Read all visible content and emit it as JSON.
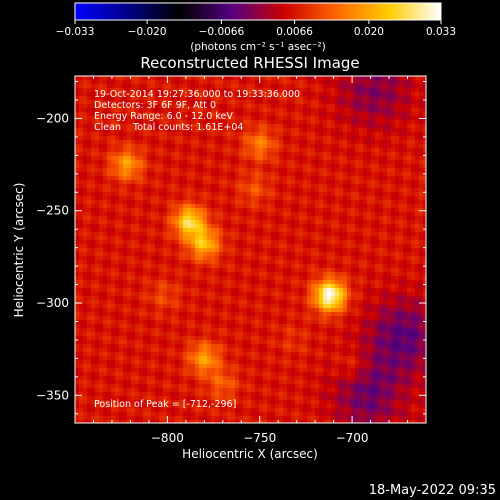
{
  "chart_data": {
    "type": "heatmap",
    "title": "Reconstructed RHESSI Image",
    "xlabel": "Heliocentric X (arcsec)",
    "ylabel": "Heliocentric Y (arcsec)",
    "xlim": [
      -850,
      -660
    ],
    "ylim": [
      -365,
      -177
    ],
    "x_ticks": [
      -800,
      -750,
      -700
    ],
    "x_tick_labels": [
      "−800",
      "−750",
      "−700"
    ],
    "y_ticks": [
      -200,
      -250,
      -300,
      -350
    ],
    "y_tick_labels": [
      "−200",
      "−250",
      "−300",
      "−350"
    ],
    "colorbar": {
      "range": [
        -0.033,
        0.033
      ],
      "ticks": [
        -0.033,
        -0.02,
        -0.0066,
        0.0066,
        0.02,
        0.033
      ],
      "tick_labels": [
        "−0.033",
        "−0.020",
        "−0.0066",
        "0.0066",
        "0.020",
        "0.033"
      ],
      "unit_label": "(photons cm⁻² s⁻¹ asec⁻²)"
    },
    "info_lines": [
      "19-Oct-2014 19:27:36.000 to 19:33:36.000",
      "Detectors: 3F 6F 9F, Att 0",
      "Energy Range: 6.0 - 12.0 keV",
      "Clean    Total counts: 1.61E+04"
    ],
    "peak_label": "Position of Peak = [-712,-296]",
    "peak": [
      -712,
      -296
    ],
    "sources": [
      {
        "x": -712,
        "y": -296,
        "value": 0.033
      },
      {
        "x": -788,
        "y": -256,
        "value": 0.026
      },
      {
        "x": -780,
        "y": -268,
        "value": 0.022
      },
      {
        "x": -822,
        "y": -225,
        "value": 0.019
      },
      {
        "x": -780,
        "y": -330,
        "value": 0.019
      },
      {
        "x": -750,
        "y": -214,
        "value": 0.016
      },
      {
        "x": -753,
        "y": -238,
        "value": 0.012
      },
      {
        "x": -770,
        "y": -344,
        "value": 0.013
      },
      {
        "x": -700,
        "y": -334,
        "value": 0.011
      },
      {
        "x": -802,
        "y": -296,
        "value": 0.011
      },
      {
        "x": -732,
        "y": -320,
        "value": 0.009
      },
      {
        "x": -678,
        "y": -352,
        "value": 0.008
      }
    ],
    "background": 0.0065,
    "negative_regions": [
      {
        "x": -672,
        "y": -318,
        "value": -0.004
      },
      {
        "x": -690,
        "y": -350,
        "value": -0.003
      },
      {
        "x": -688,
        "y": -185,
        "value": -0.001
      }
    ],
    "colormap": [
      "#0000ff",
      "#000088",
      "#000000",
      "#550080",
      "#cc0000",
      "#ff6600",
      "#ffcc00",
      "#ffffff"
    ]
  },
  "footer": {
    "timestamp": "18-May-2022 09:35"
  }
}
